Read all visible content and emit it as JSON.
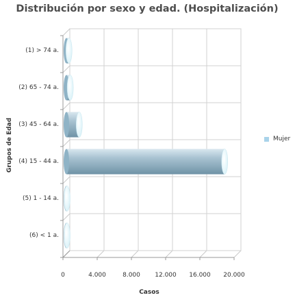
{
  "chart_data": {
    "type": "bar",
    "orientation": "horizontal",
    "title": "Distribución por sexo y edad. (Hospitalización)",
    "xlabel": "Casos",
    "ylabel": "Grupos de Edad",
    "categories": [
      "(1) > 74 a.",
      "(2) 65 - 74 a.",
      "(3) 45 - 64 a.",
      "(4) 15 - 44 a.",
      "(5) 1 - 14 a.",
      "(6) < 1 a."
    ],
    "series": [
      {
        "name": "Mujer",
        "values": [
          300,
          450,
          1500,
          18500,
          20,
          10
        ]
      }
    ],
    "xlim": [
      0,
      20000
    ],
    "xticks": [
      "0",
      "4.000",
      "8.000",
      "12.000",
      "16.000",
      "20.000"
    ],
    "xtick_values": [
      0,
      4000,
      8000,
      12000,
      16000,
      20000
    ],
    "grid": true,
    "legend_position": "right",
    "bar_color": "#8fb3c6"
  }
}
